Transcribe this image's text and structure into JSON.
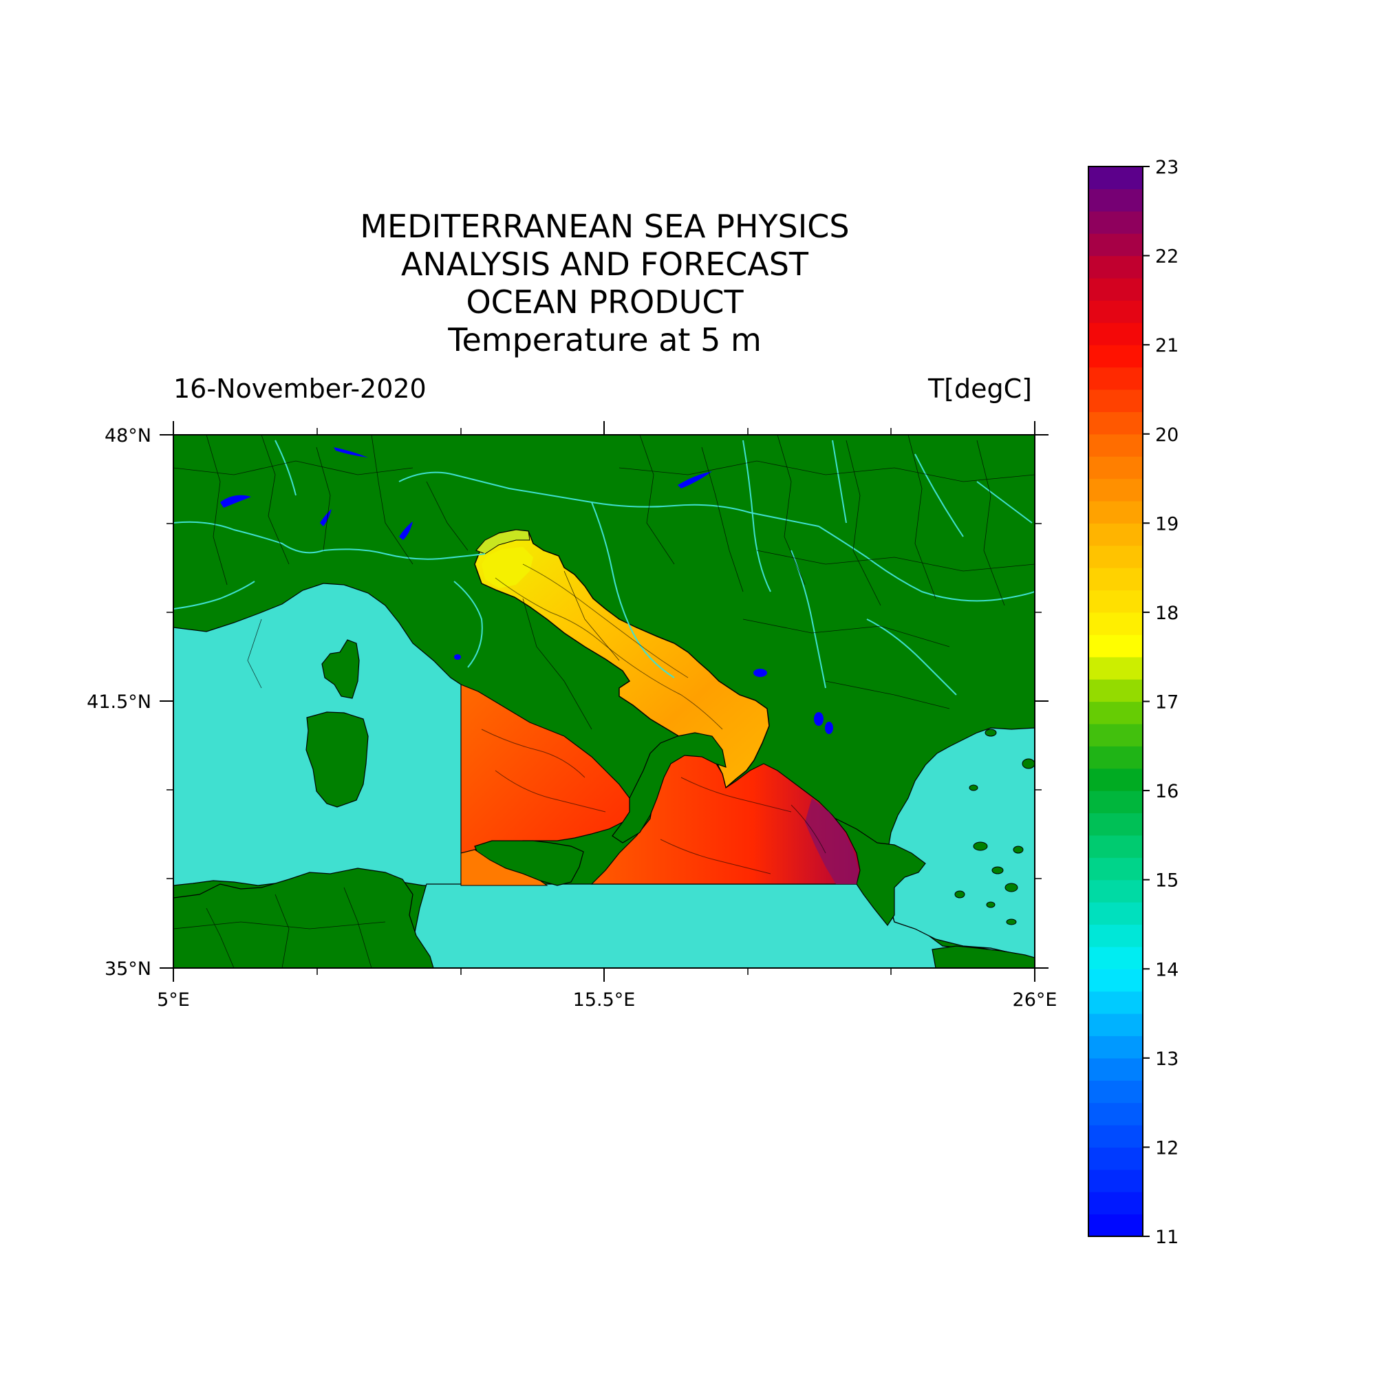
{
  "title_lines": [
    "MEDITERRANEAN SEA PHYSICS",
    "ANALYSIS AND FORECAST",
    "OCEAN PRODUCT",
    "Temperature at 5 m"
  ],
  "date_label": "16-November-2020",
  "unit_label": "T[degC]",
  "map": {
    "lon_range": [
      5,
      26
    ],
    "lat_range": [
      35,
      48
    ],
    "lon_tick_labels": [
      "5°E",
      "15.5°E",
      "26°E"
    ],
    "lat_tick_labels": [
      "48°N",
      "41.5°N",
      "35°N"
    ],
    "land_color": "#008000",
    "outside_sea_color": "#40e0d0",
    "river_color": "#40e0d0",
    "lake_color": "#0000ff"
  },
  "colorbar": {
    "min": 11,
    "max": 23,
    "tick_labels": [
      "23",
      "22",
      "21",
      "20",
      "19",
      "18",
      "17",
      "16",
      "15",
      "14",
      "13",
      "12",
      "11"
    ],
    "colormap": "rainbow (blue→cyan→green→yellow→orange→red→purple)"
  }
}
